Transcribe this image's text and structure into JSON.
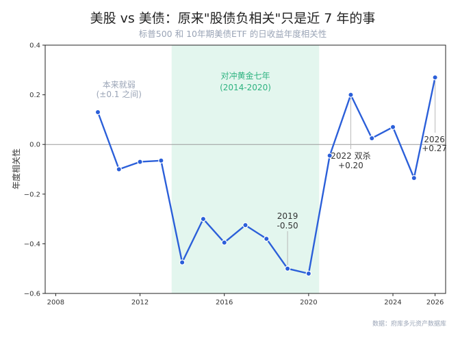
{
  "chart_data": {
    "type": "line",
    "title": "美股 vs 美债：原来\"股债负相关\"只是近 7 年的事",
    "subtitle": "标普500 和 10年期美债ETF 的日收益年度相关性",
    "ylabel": "年度相关性",
    "xlim": [
      2007.5,
      2026.5
    ],
    "ylim": [
      -0.6,
      0.4
    ],
    "xticks": [
      2008,
      2012,
      2016,
      2020,
      2024,
      2026
    ],
    "yticks": [
      -0.6,
      -0.4,
      -0.2,
      0.0,
      0.2,
      0.4
    ],
    "ytick_labels": [
      "−0.6",
      "−0.4",
      "−0.2",
      "0.0",
      "0.2",
      "0.4"
    ],
    "zero_line": true,
    "grid": false,
    "series": [
      {
        "color": "#2b5fd9",
        "points": [
          {
            "x": 2010,
            "y": 0.13
          },
          {
            "x": 2011,
            "y": -0.1
          },
          {
            "x": 2012,
            "y": -0.07
          },
          {
            "x": 2013,
            "y": -0.065
          },
          {
            "x": 2014,
            "y": -0.475
          },
          {
            "x": 2015,
            "y": -0.3
          },
          {
            "x": 2016,
            "y": -0.395
          },
          {
            "x": 2017,
            "y": -0.325
          },
          {
            "x": 2018,
            "y": -0.38
          },
          {
            "x": 2019,
            "y": -0.5
          },
          {
            "x": 2020,
            "y": -0.52
          },
          {
            "x": 2021,
            "y": -0.045
          },
          {
            "x": 2022,
            "y": 0.2
          },
          {
            "x": 2023,
            "y": 0.025
          },
          {
            "x": 2024,
            "y": 0.07
          },
          {
            "x": 2025,
            "y": -0.135
          },
          {
            "x": 2026,
            "y": 0.27
          }
        ]
      }
    ],
    "shaded_region": {
      "x_from": 2013.5,
      "x_to": 2020.5,
      "color": "#e3f6ee",
      "label_line1": "对冲黄金七年",
      "label_line2": "(2014-2020)",
      "label_color": "#2eb380"
    },
    "annotations": [
      {
        "id": "early",
        "x": 2011,
        "y": 0.255,
        "lines": [
          "本来就弱",
          "(±0.1 之间)"
        ],
        "color": "#9aa4b6",
        "anchor": "middle"
      },
      {
        "id": "y2019",
        "x": 2019,
        "y": -0.5,
        "lines": [
          "2019",
          "-0.50"
        ],
        "color": "#333333"
      },
      {
        "id": "y2022",
        "x": 2022,
        "y": 0.2,
        "lines": [
          "2022 双杀",
          "+0.20"
        ],
        "color": "#333333"
      },
      {
        "id": "y2026",
        "x": 2026,
        "y": 0.27,
        "lines": [
          "2026",
          "+0.27"
        ],
        "color": "#333333"
      }
    ],
    "source": "数据：府库多元资产数据库"
  }
}
